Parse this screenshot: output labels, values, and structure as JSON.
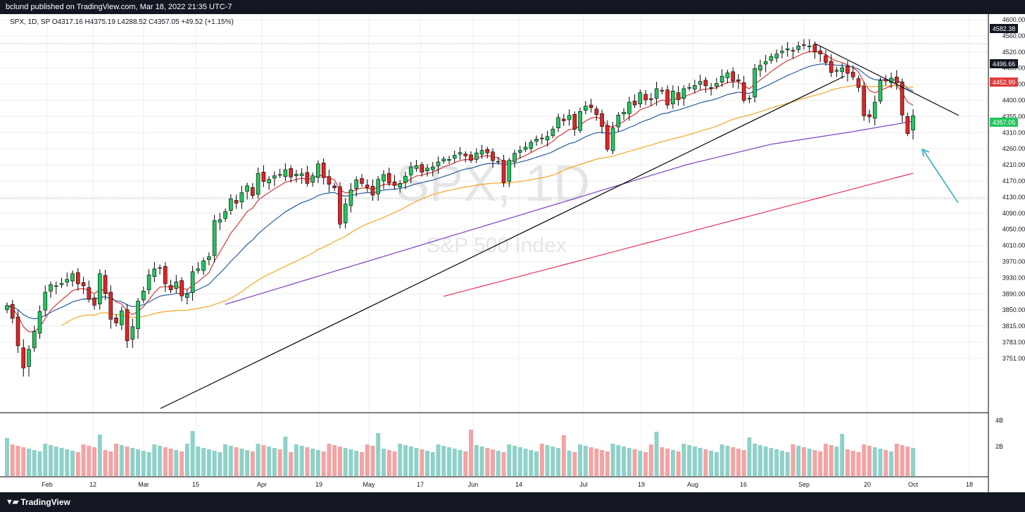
{
  "header": {
    "published_text": "bclund published on TradingView.com, Mar 18, 2022 21:35 UTC-7"
  },
  "footer": {
    "logo_icon": "tradingview-logo-icon",
    "brand_text": "TradingView"
  },
  "symbol_line": {
    "text": "SPX, 1D, SP  O4317.16  H4375.19  L4288.52  C4357.05  +49.52 (+1.15%)"
  },
  "watermark": {
    "symbol": "SPX, 1D",
    "name": "S&P 500 Index"
  },
  "colors": {
    "up": "#22c55e",
    "down": "#dc2626",
    "vol_up": "#8fd1c9",
    "vol_down": "#f4a3a3",
    "ema8": "#d63a3a",
    "ema21": "#2a5d9f",
    "ma50": "#f5a623",
    "ma100": "#7b3fbf",
    "ma200": "#e8325a",
    "trendline": "#000000",
    "arrow": "#26a6c1",
    "grid": "#eeeeee"
  },
  "chart_data": {
    "type": "candlestick",
    "symbol": "SPX",
    "timeframe": "1D",
    "exchange": "SP",
    "y_axis_ticks": [
      4600.0,
      4560.0,
      4520.0,
      4480.0,
      4440.0,
      4400.0,
      4355.0,
      4310.0,
      4260.0,
      4210.0,
      4170.0,
      4130.0,
      4090.0,
      4050.0,
      4010.0,
      3970.0,
      3930.0,
      3890.0,
      3850.0,
      3815.0,
      3783.0,
      3751.0
    ],
    "price_labels": [
      {
        "value": "4582.38",
        "style": "dark"
      },
      {
        "value": "4496.66",
        "style": "dark"
      },
      {
        "value": "4452.99",
        "style": "red"
      },
      {
        "value": "4357.05",
        "style": "green"
      }
    ],
    "volume_ticks": [
      "4B",
      "2B"
    ],
    "x_axis_labels": [
      "Feb",
      "12",
      "Mar",
      "15",
      "Apr",
      "19",
      "May",
      "17",
      "Jun",
      "14",
      "Jul",
      "19",
      "Aug",
      "16",
      "Sep",
      "20",
      "Oct",
      "18"
    ],
    "closes": [
      3861,
      3832,
      3776,
      3732,
      3769,
      3805,
      3847,
      3894,
      3913,
      3910,
      3916,
      3926,
      3940,
      3915,
      3910,
      3877,
      3862,
      3940,
      3891,
      3830,
      3822,
      3848,
      3786,
      3814,
      3872,
      3897,
      3937,
      3952,
      3955,
      3915,
      3900,
      3920,
      3885,
      3890,
      3945,
      3952,
      3972,
      3982,
      4072,
      4074,
      4094,
      4126,
      4115,
      4141,
      4158,
      4134,
      4189,
      4169,
      4174,
      4183,
      4185,
      4198,
      4180,
      4187,
      4188,
      4164,
      4183,
      4213,
      4178,
      4162,
      4153,
      4063,
      4113,
      4148,
      4173,
      4164,
      4154,
      4135,
      4174,
      4186,
      4165,
      4159,
      4164,
      4182,
      4205,
      4208,
      4192,
      4202,
      4205,
      4219,
      4228,
      4227,
      4240,
      4248,
      4238,
      4224,
      4247,
      4255,
      4247,
      4223,
      4221,
      4166,
      4224,
      4246,
      4255,
      4265,
      4280,
      4290,
      4291,
      4298,
      4320,
      4352,
      4343,
      4358,
      4320,
      4369,
      4384,
      4380,
      4360,
      4327,
      4258,
      4323,
      4359,
      4367,
      4395,
      4387,
      4419,
      4401,
      4402,
      4429,
      4423,
      4387,
      4423,
      4402,
      4429,
      4432,
      4437,
      4447,
      4436,
      4432,
      4442,
      4460,
      4468,
      4448,
      4448,
      4400,
      4405,
      4479,
      4487,
      4496,
      4509,
      4515,
      4522,
      4528,
      4523,
      4535,
      4537,
      4535,
      4520,
      4515,
      4494,
      4469,
      4475,
      4481,
      4467,
      4458,
      4432,
      4357,
      4354,
      4395,
      4449,
      4448,
      4455,
      4443,
      4359,
      4307,
      4357
    ]
  }
}
